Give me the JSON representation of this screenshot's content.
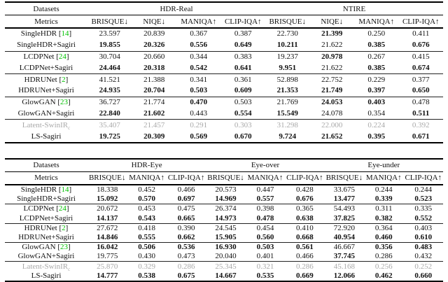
{
  "colors": {
    "citation_green": "#00c000",
    "muted_gray": "#a9a9a9"
  },
  "table1": {
    "corner": {
      "datasets": "Datasets",
      "metrics": "Metrics"
    },
    "groups": [
      {
        "label": "HDR-Real",
        "span": 4
      },
      {
        "label": "NTIRE",
        "span": 4
      }
    ],
    "metrics": [
      "BRISQUE↓",
      "NIQE↓",
      "MANIQA↑",
      "CLIP-IQA↑",
      "BRISQUE↓",
      "NIQE↓",
      "MANIQA↑",
      "CLIP-IQA↑"
    ],
    "row_groups": [
      [
        {
          "label": "SingleHDR",
          "cite": "14",
          "values": [
            "23.597",
            "20.839",
            "0.367",
            "0.387",
            "22.730",
            "21.399",
            "0.250",
            "0.411"
          ],
          "bold": [
            5
          ]
        },
        {
          "label": "SingleHDR+Sagiri",
          "values": [
            "19.855",
            "20.326",
            "0.556",
            "0.649",
            "10.211",
            "21.622",
            "0.385",
            "0.676"
          ],
          "bold": [
            0,
            1,
            2,
            3,
            4,
            6,
            7
          ]
        }
      ],
      [
        {
          "label": "LCDPNet",
          "cite": "24",
          "values": [
            "30.704",
            "20.660",
            "0.344",
            "0.383",
            "19.237",
            "20.978",
            "0.267",
            "0.415"
          ],
          "bold": [
            5
          ]
        },
        {
          "label": "LCDPNet+Sagiri",
          "values": [
            "24.464",
            "20.318",
            "0.542",
            "0.641",
            "9.951",
            "21.622",
            "0.385",
            "0.674"
          ],
          "bold": [
            0,
            1,
            2,
            3,
            4,
            6,
            7
          ]
        }
      ],
      [
        {
          "label": "HDRUNet",
          "cite": "2",
          "values": [
            "41.521",
            "21.388",
            "0.341",
            "0.361",
            "52.898",
            "22.752",
            "0.229",
            "0.377"
          ],
          "bold": []
        },
        {
          "label": "HDRUNet+Sagiri",
          "values": [
            "24.935",
            "20.704",
            "0.503",
            "0.609",
            "21.353",
            "21.749",
            "0.397",
            "0.650"
          ],
          "bold": [
            0,
            1,
            2,
            3,
            4,
            5,
            6,
            7
          ]
        }
      ],
      [
        {
          "label": "GlowGAN",
          "cite": "23",
          "values": [
            "36.727",
            "21.774",
            "0.470",
            "0.503",
            "21.769",
            "24.053",
            "0.403",
            "0.478"
          ],
          "bold": [
            2,
            5,
            6
          ]
        },
        {
          "label": "GlowGAN+Sagiri",
          "values": [
            "22.840",
            "21.602",
            "0.443",
            "0.554",
            "15.549",
            "24.078",
            "0.354",
            "0.511"
          ],
          "bold": [
            0,
            1,
            3,
            4,
            7
          ]
        }
      ],
      [
        {
          "label": "Latent-SwinIR",
          "sub": "c",
          "muted": true,
          "values": [
            "35.407",
            "21.457",
            "0.291",
            "0.303",
            "31.298",
            "22.000",
            "0.224",
            "0.392"
          ],
          "bold": []
        },
        {
          "label": "LS-Sagiri",
          "values": [
            "19.725",
            "20.309",
            "0.569",
            "0.670",
            "9.724",
            "21.652",
            "0.395",
            "0.671"
          ],
          "bold": [
            0,
            1,
            2,
            3,
            4,
            5,
            6,
            7
          ]
        }
      ]
    ]
  },
  "table2": {
    "corner": {
      "datasets": "Datasets",
      "metrics": "Metrics"
    },
    "groups": [
      {
        "label": "HDR-Eye",
        "span": 3
      },
      {
        "label": "Eye-over",
        "span": 3
      },
      {
        "label": "Eye-under",
        "span": 3
      }
    ],
    "metrics": [
      "BRISQUE↓",
      "MANIQA↑",
      "CLIP-IQA↑",
      "BRISQUE↓",
      "MANIQA↑",
      "CLIP-IQA↑",
      "BRISQUE↓",
      "MANIQA↑",
      "CLIP-IQA↑"
    ],
    "row_groups": [
      [
        {
          "label": "SingleHDR",
          "cite": "14",
          "values": [
            "18.338",
            "0.452",
            "0.466",
            "20.573",
            "0.447",
            "0.428",
            "33.675",
            "0.244",
            "0.244"
          ],
          "bold": []
        },
        {
          "label": "SingleHDR+Sagiri",
          "values": [
            "15.092",
            "0.570",
            "0.697",
            "14.969",
            "0.557",
            "0.676",
            "13.477",
            "0.339",
            "0.523"
          ],
          "bold": [
            0,
            1,
            2,
            3,
            4,
            5,
            6,
            7,
            8
          ]
        }
      ],
      [
        {
          "label": "LCDPNet",
          "cite": "24",
          "values": [
            "20.672",
            "0.453",
            "0.475",
            "26.374",
            "0.398",
            "0.365",
            "54.493",
            "0.311",
            "0.335"
          ],
          "bold": []
        },
        {
          "label": "LCDPNet+Sagiri",
          "values": [
            "14.137",
            "0.543",
            "0.665",
            "14.973",
            "0.478",
            "0.638",
            "37.825",
            "0.382",
            "0.552"
          ],
          "bold": [
            0,
            1,
            2,
            3,
            4,
            5,
            6,
            7,
            8
          ]
        }
      ],
      [
        {
          "label": "HDRUNet",
          "cite": "2",
          "values": [
            "27.672",
            "0.418",
            "0.390",
            "24.545",
            "0.454",
            "0.410",
            "72.920",
            "0.364",
            "0.403"
          ],
          "bold": []
        },
        {
          "label": "HDRUNet+Sagiri",
          "values": [
            "14.846",
            "0.555",
            "0.662",
            "15.905",
            "0.560",
            "0.668",
            "40.954",
            "0.460",
            "0.610"
          ],
          "bold": [
            0,
            1,
            2,
            3,
            4,
            5,
            6,
            7,
            8
          ]
        }
      ],
      [
        {
          "label": "GlowGAN",
          "cite": "23",
          "values": [
            "16.042",
            "0.506",
            "0.536",
            "16.930",
            "0.503",
            "0.561",
            "46.667",
            "0.356",
            "0.483"
          ],
          "bold": [
            0,
            1,
            2,
            3,
            4,
            5,
            7,
            8
          ]
        },
        {
          "label": "GlowGAN+Sagiri",
          "values": [
            "19.775",
            "0.430",
            "0.473",
            "20.040",
            "0.401",
            "0.466",
            "37.745",
            "0.286",
            "0.432"
          ],
          "bold": [
            6
          ]
        }
      ],
      [
        {
          "label": "Latent-SwinIR",
          "sub": "c",
          "muted": true,
          "values": [
            "25.870",
            "0.329",
            "0.286",
            "25.345",
            "0.321",
            "0.286",
            "45.168",
            "0.256",
            "0.252"
          ],
          "bold": []
        },
        {
          "label": "LS-Sagiri",
          "values": [
            "14.777",
            "0.538",
            "0.675",
            "14.667",
            "0.535",
            "0.669",
            "12.066",
            "0.462",
            "0.660"
          ],
          "bold": [
            0,
            1,
            2,
            3,
            4,
            5,
            6,
            7,
            8
          ]
        }
      ]
    ]
  }
}
